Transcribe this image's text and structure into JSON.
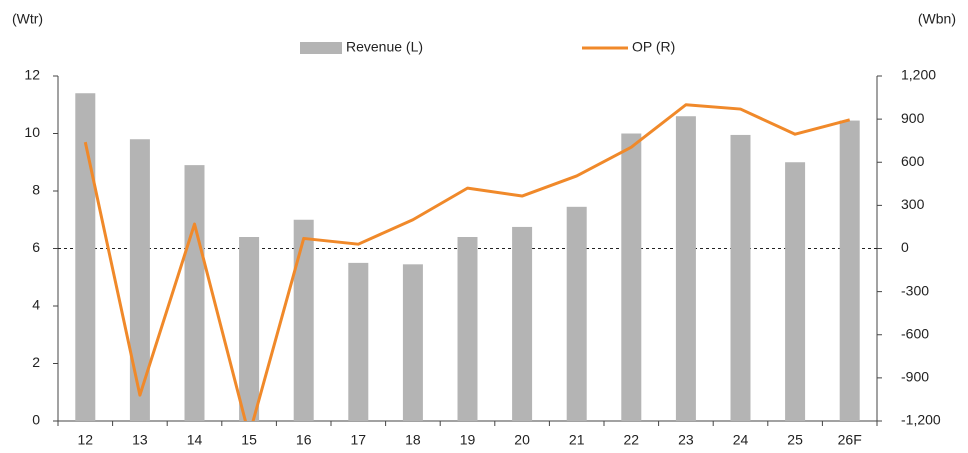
{
  "chart_data": {
    "type": "bar_line",
    "y_label": "(Wtr)",
    "y2_label": "(Wbn)",
    "categories": [
      "12",
      "13",
      "14",
      "15",
      "16",
      "17",
      "18",
      "19",
      "20",
      "21",
      "22",
      "23",
      "24",
      "25",
      "26F"
    ],
    "series": [
      {
        "name": "Revenue (L)",
        "type": "bar",
        "color": "#b4b4b4",
        "axis": "y",
        "values": [
          11.4,
          9.8,
          8.9,
          6.4,
          7.0,
          5.5,
          5.45,
          6.4,
          6.75,
          7.45,
          10.0,
          10.6,
          9.95,
          9.0,
          10.45
        ]
      },
      {
        "name": "OP (R)",
        "type": "line",
        "color": "#f0892a",
        "axis": "y2",
        "values": [
          740,
          -1020,
          170,
          -1300,
          70,
          30,
          200,
          420,
          365,
          505,
          705,
          1000,
          970,
          795,
          895
        ]
      }
    ],
    "ylim": [
      0,
      12
    ],
    "yticks": [
      0,
      2,
      4,
      6,
      8,
      10,
      12
    ],
    "y2lim": [
      -1200,
      1200
    ],
    "y2ticks": [
      {
        "value": -1200,
        "label": "-1,200"
      },
      -900,
      -600,
      -300,
      0,
      300,
      600,
      900,
      {
        "value": 1200,
        "label": "1,200"
      }
    ],
    "y2_zero_line": true,
    "legend": "top"
  }
}
